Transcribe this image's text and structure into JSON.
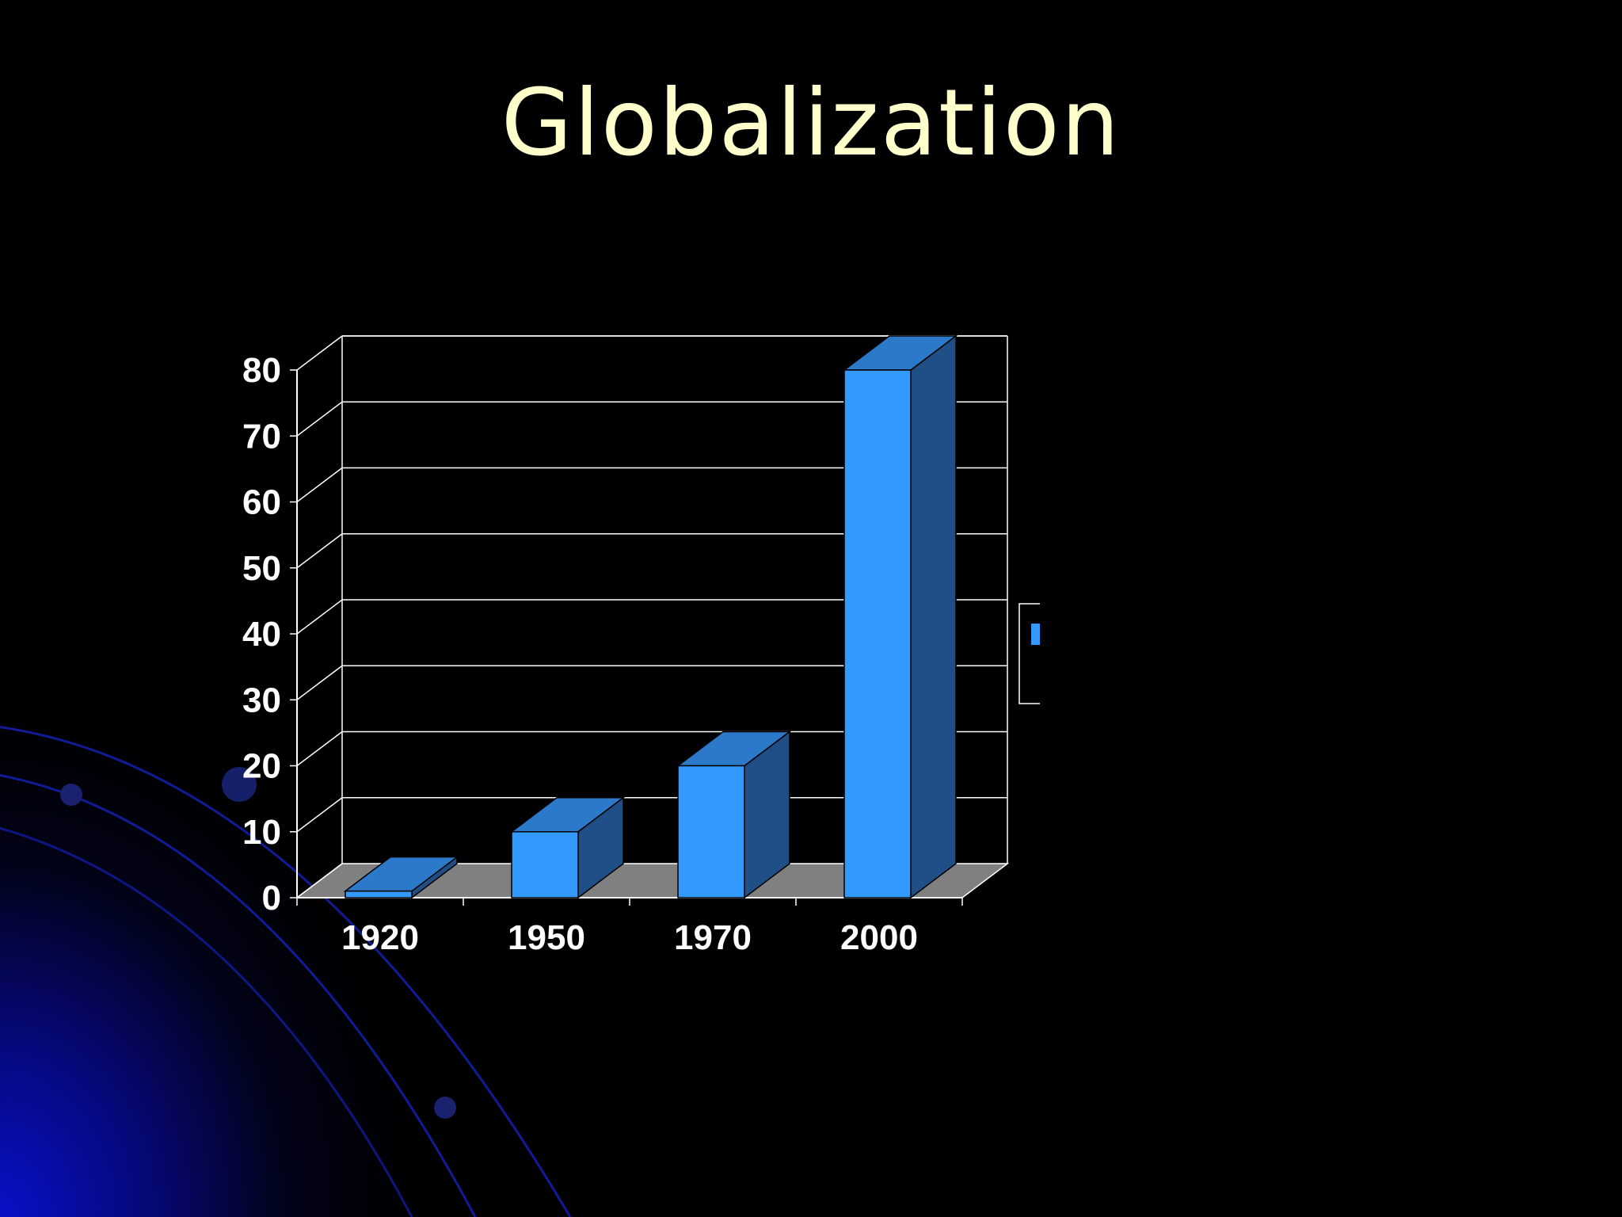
{
  "slide": {
    "title": "Globalization"
  },
  "colors": {
    "background": "#000000",
    "title": "#ffffcc",
    "bar_front": "#3399ff",
    "bar_top": "#2c78c9",
    "bar_side": "#1f4f86",
    "floor": "#808080",
    "gridlines": "#ffffff",
    "decor_glow": "#0a10c8"
  },
  "chart_data": {
    "type": "bar",
    "three_d": true,
    "categories": [
      "1920",
      "1950",
      "1970",
      "2000"
    ],
    "series": [
      {
        "values": [
          1,
          10,
          20,
          80
        ]
      }
    ],
    "title": "",
    "xlabel": "",
    "ylabel": "",
    "ylim": [
      0,
      80
    ],
    "yticks": [
      "0",
      "10",
      "20",
      "30",
      "40",
      "50",
      "60",
      "70",
      "80"
    ],
    "grid": true,
    "legend": "right"
  }
}
